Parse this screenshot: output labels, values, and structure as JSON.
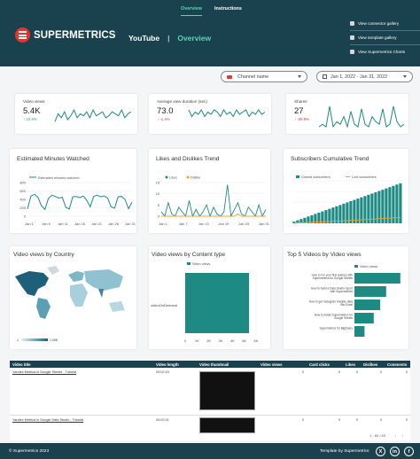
{
  "nav": {
    "tabs": [
      "Overview",
      "Instructions"
    ]
  },
  "header": {
    "logo_text": "SUPERMETRICS",
    "section": "YouTube",
    "sep": "|",
    "page": "Overview"
  },
  "sidelinks": [
    "View connector gallery",
    "View template gallery",
    "View Supermetrics Charts"
  ],
  "filters": {
    "channel": "Channel name",
    "date": "Jan 1, 2022 - Jan 31, 2022"
  },
  "kpis": [
    {
      "label": "Video views",
      "value": "5.4K",
      "delta": "↑ 10.9%",
      "trend": "up"
    },
    {
      "label": "Average view duration (sec)",
      "value": "73.0",
      "delta": "↓ -1.4%",
      "trend": "down"
    },
    {
      "label": "Shares",
      "value": "27",
      "delta": "↓ -26.9%",
      "trend": "down"
    }
  ],
  "minutes": {
    "title": "Estimated Minutes Watched",
    "legend": "Estimated minutes watched",
    "yticks": [
      "800",
      "600",
      "400",
      "200",
      "0"
    ],
    "xticks": [
      "Jan 1",
      "Jan 6",
      "Jan 11",
      "Jan 16",
      "Jan 21",
      "Jan 26",
      "Jan 31"
    ]
  },
  "likes": {
    "title": "Likes and Dislikes Trend",
    "legend": [
      "Likes",
      "Dislike"
    ],
    "yticks": [
      "15",
      "10",
      "5",
      "0"
    ],
    "xticks": [
      "Jan 1",
      "Jan 7",
      "Jan 13",
      "Jan 19",
      "Jan 25",
      "Jan 31"
    ]
  },
  "subs": {
    "title": "Subscribers Cumulative Trend",
    "legend": [
      "Gained subscribers",
      "Lost subscribers"
    ]
  },
  "country": {
    "title": "Video views by Country",
    "min": "1",
    "max": "1,008"
  },
  "content": {
    "title": "Video views by Content type",
    "legend": "Video views",
    "category": "videoOnDemand",
    "xticks": [
      "0",
      "1K",
      "2K",
      "3K",
      "4K",
      "5K",
      "6K"
    ]
  },
  "top5": {
    "title": "Top 5 Videos by Video views",
    "legend": "Video views",
    "labels": [
      "How to run your first queries with Supermetrics for Google Sheets",
      "How to build a Data Studio report with Supermetrics",
      "How to get Instagram Insights data into Excel",
      "How to install Supermetrics for Google Sheets",
      "Supermetrics for BigQuery"
    ]
  },
  "table": {
    "headers": [
      "Video title",
      "Video length",
      "Video thumbnail",
      "Video views",
      "Card clicks",
      "Likes",
      "Dislikes",
      "Comments"
    ],
    "rows": [
      {
        "title": "Yandex Metrica in Google Sheets - Tutorial",
        "length": "00:02:43",
        "views": "0",
        "clicks": "0",
        "likes": "0",
        "dislikes": "0",
        "comments": "0"
      },
      {
        "title": "Yandex Metrica in Google Data Studio - Tutorial",
        "length": "00:02:41",
        "views": "0",
        "clicks": "0",
        "likes": "0",
        "dislikes": "0",
        "comments": "0"
      }
    ],
    "pager": "1 - 60 / 63"
  },
  "footer": {
    "copyright": "© Supermetrics 2023",
    "template": "Template by Supermetrics"
  },
  "social": [
    "X",
    "in",
    "f"
  ],
  "colors": {
    "header": "#19424e",
    "accent": "#5fd3b3",
    "teal": "#1e8a84",
    "orange": "#f0a42c"
  },
  "chart_data": [
    {
      "type": "line",
      "title": "Estimated Minutes Watched",
      "series": [
        {
          "name": "Estimated minutes watched",
          "values": [
            170,
            480,
            520,
            450,
            250,
            160,
            420,
            500,
            470,
            430,
            450,
            210,
            170,
            460,
            470,
            440,
            480,
            380,
            220,
            470,
            500,
            460,
            480,
            430,
            220,
            190,
            460,
            470,
            400,
            180,
            330
          ]
        }
      ],
      "ylim": [
        0,
        800
      ]
    },
    {
      "type": "line",
      "title": "Likes and Dislikes Trend",
      "series": [
        {
          "name": "Likes",
          "values": [
            2,
            0,
            6,
            1,
            0,
            4,
            2,
            0,
            7,
            0,
            3,
            0,
            2,
            5,
            0,
            4,
            1,
            0,
            2,
            14,
            0,
            3,
            6,
            1,
            0,
            4,
            2,
            0,
            5,
            0,
            3
          ]
        },
        {
          "name": "Dislike",
          "values": [
            0,
            0,
            0,
            0,
            0,
            0,
            0,
            0,
            0,
            0,
            0,
            0,
            0,
            0,
            0,
            0,
            0,
            0,
            0,
            0,
            0,
            0,
            1,
            0,
            0,
            0,
            0,
            0,
            0,
            0,
            0
          ]
        }
      ],
      "ylim": [
        0,
        15
      ]
    },
    {
      "type": "bar",
      "title": "Subscribers Cumulative Trend",
      "series": [
        {
          "name": "Gained subscribers",
          "values": [
            4,
            7,
            10,
            13,
            16,
            19,
            22,
            25,
            28,
            31,
            34,
            37,
            40,
            43,
            46,
            49,
            52,
            55,
            58,
            61,
            64,
            67,
            70,
            73,
            76,
            79,
            82,
            85,
            88,
            91,
            94
          ]
        },
        {
          "name": "Lost subscribers",
          "values": [
            0,
            1,
            1,
            1,
            2,
            2,
            3,
            3,
            3,
            4,
            4,
            5,
            5,
            5,
            6,
            6,
            7,
            7,
            8,
            8,
            9,
            9,
            10,
            10,
            11,
            11,
            12,
            12,
            13,
            13,
            14
          ]
        }
      ]
    },
    {
      "type": "bar",
      "title": "Video views by Content type",
      "categories": [
        "videoOnDemand"
      ],
      "series": [
        {
          "name": "Video views",
          "values": [
            5400
          ]
        }
      ],
      "xlim": [
        0,
        6000
      ]
    },
    {
      "type": "bar",
      "title": "Top 5 Videos by Video views",
      "series": [
        {
          "name": "Video views",
          "values": [
            1000,
            690,
            560,
            420,
            220
          ]
        }
      ]
    },
    {
      "type": "line",
      "title": "Video views",
      "series": [
        {
          "name": "Video views",
          "values": [
            3,
            7,
            5,
            8,
            4,
            6,
            9,
            5,
            7,
            6,
            8,
            5,
            9,
            6,
            7,
            8,
            5,
            6,
            8,
            7,
            6,
            9,
            5,
            7,
            8
          ]
        }
      ]
    },
    {
      "type": "line",
      "title": "Average view duration (sec)",
      "series": [
        {
          "name": "Average view duration (sec)",
          "values": [
            8,
            5,
            7,
            6,
            8,
            5,
            7,
            6,
            8,
            7,
            5,
            8,
            6,
            7,
            5,
            8,
            6,
            7,
            8,
            5,
            7,
            6,
            8,
            6,
            7
          ]
        }
      ]
    },
    {
      "type": "line",
      "title": "Shares",
      "series": [
        {
          "name": "Shares",
          "values": [
            1,
            2,
            1,
            9,
            1,
            3,
            2,
            5,
            1,
            7,
            2,
            1,
            8,
            2,
            1,
            5,
            3,
            2,
            8,
            1,
            2,
            9,
            3,
            1,
            2
          ]
        }
      ]
    }
  ]
}
